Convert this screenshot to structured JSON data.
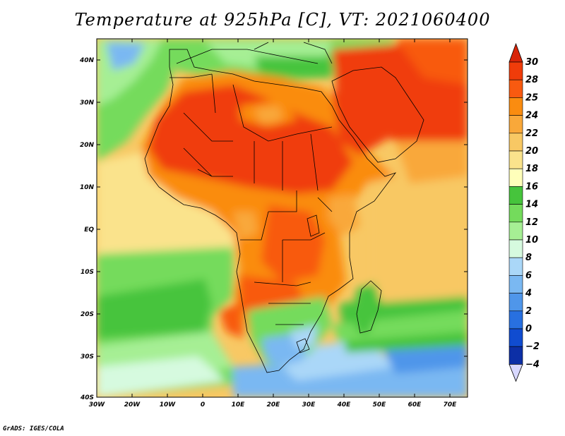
{
  "title": "Temperature at 925hPa [C], VT: 2021060400",
  "credit": "GrADS: IGES/COLA",
  "map": {
    "lon_labels": [
      "30W",
      "20W",
      "10W",
      "0",
      "10E",
      "20E",
      "30E",
      "40E",
      "50E",
      "60E",
      "70E"
    ],
    "lat_labels": [
      "40N",
      "30N",
      "20N",
      "10N",
      "EQ",
      "10S",
      "20S",
      "30S",
      "40S"
    ]
  },
  "colorbar": {
    "levels": [
      {
        "label": "30",
        "color": "#f03c0a"
      },
      {
        "label": "28",
        "color": "#f85a10"
      },
      {
        "label": "25",
        "color": "#fa8c10"
      },
      {
        "label": "24",
        "color": "#f9a83a"
      },
      {
        "label": "22",
        "color": "#f8c864"
      },
      {
        "label": "20",
        "color": "#fae38c"
      },
      {
        "label": "18",
        "color": "#ffffba"
      },
      {
        "label": "16",
        "color": "#46c43c"
      },
      {
        "label": "14",
        "color": "#74db5c"
      },
      {
        "label": "12",
        "color": "#a6ef94"
      },
      {
        "label": "10",
        "color": "#d6fadf"
      },
      {
        "label": "8",
        "color": "#aad7f8"
      },
      {
        "label": "6",
        "color": "#7ab8f2"
      },
      {
        "label": "4",
        "color": "#4f96ea"
      },
      {
        "label": "2",
        "color": "#2870e0"
      },
      {
        "label": "0",
        "color": "#104cd0"
      },
      {
        "label": "−2",
        "color": "#0c2fa6"
      },
      {
        "label": "−4",
        "color": "#0a1a78"
      }
    ],
    "top_color": "#d82408",
    "bottom_color": "#d8d8ff"
  }
}
